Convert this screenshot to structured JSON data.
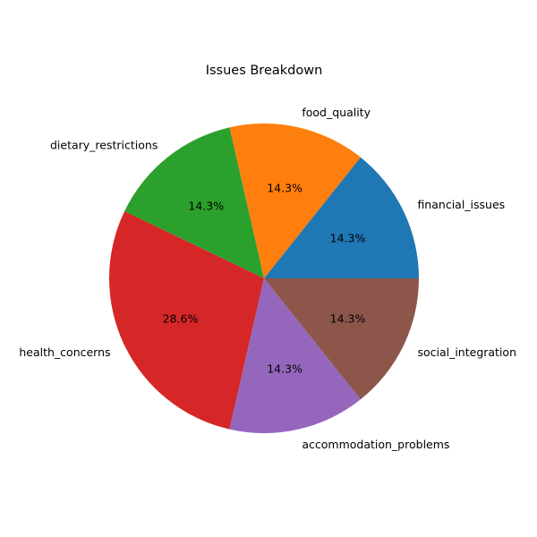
{
  "chart_data": {
    "type": "pie",
    "title": "Issues Breakdown",
    "categories": [
      "financial_issues",
      "food_quality",
      "dietary_restrictions",
      "health_concerns",
      "accommodation_problems",
      "social_integration"
    ],
    "values": [
      1,
      1,
      1,
      2,
      1,
      1
    ],
    "percent_labels": [
      "14.3%",
      "14.3%",
      "14.3%",
      "28.6%",
      "14.3%",
      "14.3%"
    ],
    "colors": [
      "#1f77b4",
      "#ff7f0e",
      "#2ca02c",
      "#d62728",
      "#9467bd",
      "#8c564b"
    ],
    "start_angle_deg": 0,
    "direction": "counterclockwise",
    "legend": "none"
  }
}
